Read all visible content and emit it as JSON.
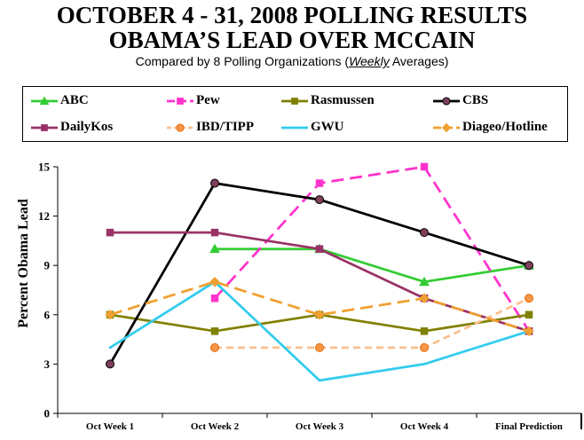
{
  "chart_data": {
    "type": "line",
    "title": [
      "OCTOBER 4 - 31, 2008 POLLING RESULTS",
      "OBAMA’S LEAD OVER MCCAIN"
    ],
    "subtitle": {
      "before": "Compared by 8 Polling Organizations (",
      "emphasis": "Weekly",
      "after": " Averages)"
    },
    "ylabel": "Percent Obama Lead",
    "categories": [
      "Oct Week 1",
      "Oct Week 2",
      "Oct Week 3",
      "Oct Week 4",
      "Final Prediction"
    ],
    "ylim": [
      0,
      15
    ],
    "yticks": [
      0,
      3,
      6,
      9,
      12,
      15
    ],
    "grid": false,
    "legend_position": "top",
    "series": [
      {
        "name": "ABC",
        "color": "#33CC33",
        "line_style": "solid",
        "marker": "triangle",
        "values": [
          null,
          10,
          10,
          8,
          9
        ]
      },
      {
        "name": "Pew",
        "color": "#FF33CC",
        "line_style": "long-dash",
        "marker": "square",
        "values": [
          null,
          7,
          14,
          15,
          5
        ]
      },
      {
        "name": "Rasmussen",
        "color": "#808000",
        "line_style": "solid",
        "marker": "square",
        "values": [
          6,
          5,
          6,
          5,
          6
        ]
      },
      {
        "name": "CBS",
        "color": "#000000",
        "line_style": "solid",
        "marker": "circle",
        "marker_color": "#7F3F5F",
        "marker_edge": "#000000",
        "values": [
          3,
          14,
          13,
          11,
          9
        ]
      },
      {
        "name": "DailyKos",
        "color": "#993366",
        "line_style": "solid",
        "marker": "square",
        "values": [
          11,
          11,
          10,
          7,
          5
        ]
      },
      {
        "name": "IBD/TIPP",
        "color": "#FAC090",
        "line_style": "dash",
        "marker": "circle",
        "marker_color": "#F79646",
        "marker_edge": "#E46C0A",
        "values": [
          null,
          4,
          4,
          4,
          7
        ]
      },
      {
        "name": "GWU",
        "color": "#33CCEE",
        "line_style": "solid",
        "values": [
          4,
          8,
          2,
          3,
          5
        ]
      },
      {
        "name": "Diageo/Hotline",
        "color": "#F0A030",
        "line_style": "long-dash",
        "marker": "diamond",
        "values": [
          6,
          8,
          6,
          7,
          5
        ]
      }
    ]
  }
}
